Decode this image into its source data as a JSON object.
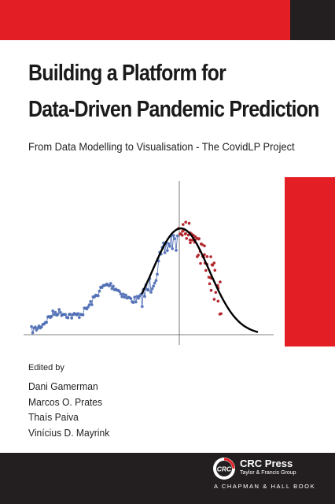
{
  "book": {
    "title_line1": "Building a Platform for",
    "title_line2": "Data-Driven Pandemic Prediction",
    "subtitle": "From Data Modelling to Visualisation - The CovidLP Project"
  },
  "credits": {
    "edited_by": "Edited by",
    "editors": [
      "Dani Gamerman",
      "Marcos O. Prates",
      "Thaís Paiva",
      "Vinícius D. Mayrink"
    ]
  },
  "publisher": {
    "logo_text": "CRC",
    "name": "CRC Press",
    "group": "Taylor & Francis Group",
    "series": "A CHAPMAN & HALL BOOK"
  },
  "colors": {
    "accent_red": "#e31e24",
    "dark": "#231f20",
    "observed_blue": "#4a6ab3",
    "forecast_red": "#b3282d",
    "curve": "#000000"
  },
  "icons": [
    "crc-press-logo-icon"
  ]
}
